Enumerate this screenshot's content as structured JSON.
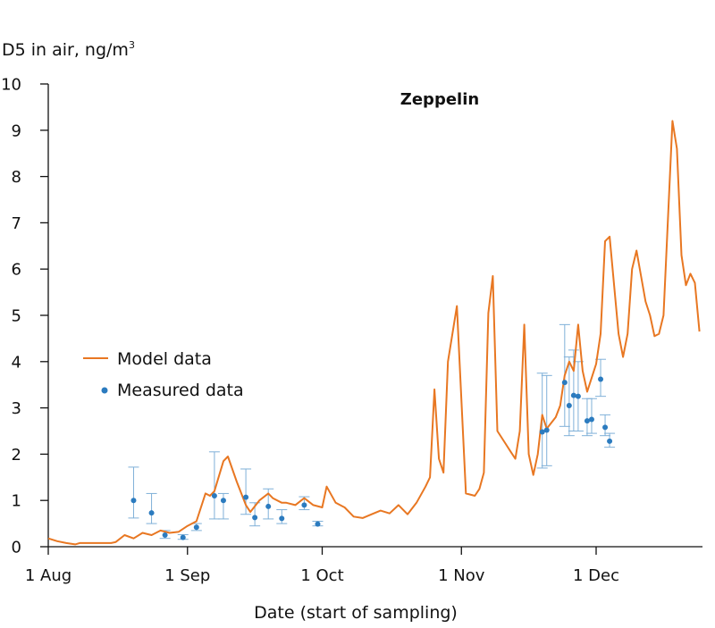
{
  "chart_data": {
    "type": "line",
    "title": "Zeppelin",
    "xlabel": "Date (start of sampling)",
    "ylabel": {
      "prefix": "D5 in air, ng/m",
      "sup": "3"
    },
    "ylim": [
      0,
      10
    ],
    "yticks": [
      0,
      1,
      2,
      3,
      4,
      5,
      6,
      7,
      8,
      9,
      10
    ],
    "xlim": [
      "2013-08-01",
      "2013-12-22"
    ],
    "xticks": [
      {
        "date": "2013-08-01",
        "label": "1 Aug"
      },
      {
        "date": "2013-09-01",
        "label": "1 Sep"
      },
      {
        "date": "2013-10-01",
        "label": "1 Oct"
      },
      {
        "date": "2013-11-01",
        "label": "1 Nov"
      },
      {
        "date": "2013-12-01",
        "label": "1 Dec"
      }
    ],
    "grid": false,
    "legend_position": "middle-left",
    "colors": {
      "model": "#e87722",
      "measured": "#2b7bbf",
      "errorbar": "#7fb0d8"
    },
    "series": [
      {
        "name": "Model data",
        "kind": "line",
        "points": [
          [
            "2013-08-01",
            0.18
          ],
          [
            "2013-08-03",
            0.12
          ],
          [
            "2013-08-05",
            0.08
          ],
          [
            "2013-08-07",
            0.05
          ],
          [
            "2013-08-08",
            0.08
          ],
          [
            "2013-08-10",
            0.08
          ],
          [
            "2013-08-13",
            0.08
          ],
          [
            "2013-08-15",
            0.08
          ],
          [
            "2013-08-16",
            0.1
          ],
          [
            "2013-08-18",
            0.25
          ],
          [
            "2013-08-20",
            0.18
          ],
          [
            "2013-08-22",
            0.3
          ],
          [
            "2013-08-24",
            0.25
          ],
          [
            "2013-08-26",
            0.35
          ],
          [
            "2013-08-28",
            0.3
          ],
          [
            "2013-08-30",
            0.32
          ],
          [
            "2013-09-01",
            0.45
          ],
          [
            "2013-09-03",
            0.55
          ],
          [
            "2013-09-05",
            1.15
          ],
          [
            "2013-09-06",
            1.1
          ],
          [
            "2013-09-07",
            1.2
          ],
          [
            "2013-09-09",
            1.85
          ],
          [
            "2013-09-10",
            1.95
          ],
          [
            "2013-09-12",
            1.4
          ],
          [
            "2013-09-14",
            0.9
          ],
          [
            "2013-09-15",
            0.75
          ],
          [
            "2013-09-17",
            1.0
          ],
          [
            "2013-09-19",
            1.15
          ],
          [
            "2013-09-20",
            1.05
          ],
          [
            "2013-09-22",
            0.95
          ],
          [
            "2013-09-23",
            0.95
          ],
          [
            "2013-09-25",
            0.9
          ],
          [
            "2013-09-27",
            1.05
          ],
          [
            "2013-09-29",
            0.9
          ],
          [
            "2013-10-01",
            0.85
          ],
          [
            "2013-10-02",
            1.3
          ],
          [
            "2013-10-04",
            0.95
          ],
          [
            "2013-10-06",
            0.85
          ],
          [
            "2013-10-08",
            0.65
          ],
          [
            "2013-10-10",
            0.62
          ],
          [
            "2013-10-12",
            0.7
          ],
          [
            "2013-10-14",
            0.78
          ],
          [
            "2013-10-16",
            0.72
          ],
          [
            "2013-10-18",
            0.9
          ],
          [
            "2013-10-20",
            0.7
          ],
          [
            "2013-10-22",
            0.95
          ],
          [
            "2013-10-24",
            1.3
          ],
          [
            "2013-10-25",
            1.5
          ],
          [
            "2013-10-26",
            3.4
          ],
          [
            "2013-10-27",
            1.9
          ],
          [
            "2013-10-28",
            1.6
          ],
          [
            "2013-10-29",
            4.0
          ],
          [
            "2013-10-31",
            5.2
          ],
          [
            "2013-11-02",
            1.15
          ],
          [
            "2013-11-04",
            1.1
          ],
          [
            "2013-11-05",
            1.25
          ],
          [
            "2013-11-06",
            1.6
          ],
          [
            "2013-11-07",
            5.05
          ],
          [
            "2013-11-08",
            5.85
          ],
          [
            "2013-11-09",
            2.5
          ],
          [
            "2013-11-11",
            2.2
          ],
          [
            "2013-11-12",
            2.05
          ],
          [
            "2013-11-13",
            1.9
          ],
          [
            "2013-11-14",
            2.5
          ],
          [
            "2013-11-15",
            4.8
          ],
          [
            "2013-11-16",
            2.0
          ],
          [
            "2013-11-17",
            1.55
          ],
          [
            "2013-11-18",
            2.0
          ],
          [
            "2013-11-19",
            2.85
          ],
          [
            "2013-11-20",
            2.55
          ],
          [
            "2013-11-22",
            2.8
          ],
          [
            "2013-11-23",
            3.05
          ],
          [
            "2013-11-24",
            3.7
          ],
          [
            "2013-11-25",
            4.0
          ],
          [
            "2013-11-26",
            3.8
          ],
          [
            "2013-11-27",
            4.8
          ],
          [
            "2013-11-28",
            3.8
          ],
          [
            "2013-11-29",
            3.35
          ],
          [
            "2013-11-30",
            3.65
          ],
          [
            "2013-12-01",
            3.95
          ],
          [
            "2013-12-02",
            4.6
          ],
          [
            "2013-12-03",
            6.6
          ],
          [
            "2013-12-04",
            6.7
          ],
          [
            "2013-12-06",
            4.6
          ],
          [
            "2013-12-07",
            4.1
          ],
          [
            "2013-12-08",
            4.6
          ],
          [
            "2013-12-09",
            6.0
          ],
          [
            "2013-12-10",
            6.4
          ],
          [
            "2013-12-12",
            5.3
          ],
          [
            "2013-12-13",
            5.0
          ],
          [
            "2013-12-14",
            4.55
          ],
          [
            "2013-12-15",
            4.6
          ],
          [
            "2013-12-16",
            5.0
          ],
          [
            "2013-12-17",
            7.1
          ],
          [
            "2013-12-18",
            9.2
          ],
          [
            "2013-12-19",
            8.6
          ],
          [
            "2013-12-20",
            6.3
          ],
          [
            "2013-12-21",
            5.65
          ],
          [
            "2013-12-22",
            5.9
          ],
          [
            "2013-12-23",
            5.7
          ],
          [
            "2013-12-24",
            4.65
          ]
        ]
      },
      {
        "name": "Measured data",
        "kind": "scatter",
        "points": [
          {
            "x": "2013-08-20",
            "y": 1.0,
            "low": 0.62,
            "high": 1.72
          },
          {
            "x": "2013-08-24",
            "y": 0.73,
            "low": 0.5,
            "high": 1.15
          },
          {
            "x": "2013-08-27",
            "y": 0.25,
            "low": 0.18,
            "high": 0.35
          },
          {
            "x": "2013-08-31",
            "y": 0.2,
            "low": 0.16,
            "high": 0.26
          },
          {
            "x": "2013-09-03",
            "y": 0.42,
            "low": 0.35,
            "high": 0.5
          },
          {
            "x": "2013-09-07",
            "y": 1.1,
            "low": 0.6,
            "high": 2.05
          },
          {
            "x": "2013-09-09",
            "y": 1.0,
            "low": 0.6,
            "high": 1.15
          },
          {
            "x": "2013-09-14",
            "y": 1.07,
            "low": 0.7,
            "high": 1.68
          },
          {
            "x": "2013-09-16",
            "y": 0.63,
            "low": 0.45,
            "high": 0.95
          },
          {
            "x": "2013-09-19",
            "y": 0.87,
            "low": 0.6,
            "high": 1.25
          },
          {
            "x": "2013-09-22",
            "y": 0.61,
            "low": 0.5,
            "high": 0.8
          },
          {
            "x": "2013-09-27",
            "y": 0.9,
            "low": 0.8,
            "high": 1.08
          },
          {
            "x": "2013-09-30",
            "y": 0.49,
            "low": 0.45,
            "high": 0.55
          },
          {
            "x": "2013-11-19",
            "y": 2.48,
            "low": 1.7,
            "high": 3.75
          },
          {
            "x": "2013-11-20",
            "y": 2.52,
            "low": 1.75,
            "high": 3.7
          },
          {
            "x": "2013-11-24",
            "y": 3.55,
            "low": 2.6,
            "high": 4.8
          },
          {
            "x": "2013-11-25",
            "y": 3.05,
            "low": 2.4,
            "high": 4.1
          },
          {
            "x": "2013-11-26",
            "y": 3.27,
            "low": 2.5,
            "high": 4.25
          },
          {
            "x": "2013-11-27",
            "y": 3.25,
            "low": 2.5,
            "high": 4.0
          },
          {
            "x": "2013-11-29",
            "y": 2.72,
            "low": 2.4,
            "high": 3.2
          },
          {
            "x": "2013-11-30",
            "y": 2.75,
            "low": 2.45,
            "high": 3.2
          },
          {
            "x": "2013-12-02",
            "y": 3.62,
            "low": 3.25,
            "high": 4.05
          },
          {
            "x": "2013-12-03",
            "y": 2.58,
            "low": 2.4,
            "high": 2.85
          },
          {
            "x": "2013-12-04",
            "y": 2.28,
            "low": 2.15,
            "high": 2.45
          }
        ]
      }
    ]
  }
}
